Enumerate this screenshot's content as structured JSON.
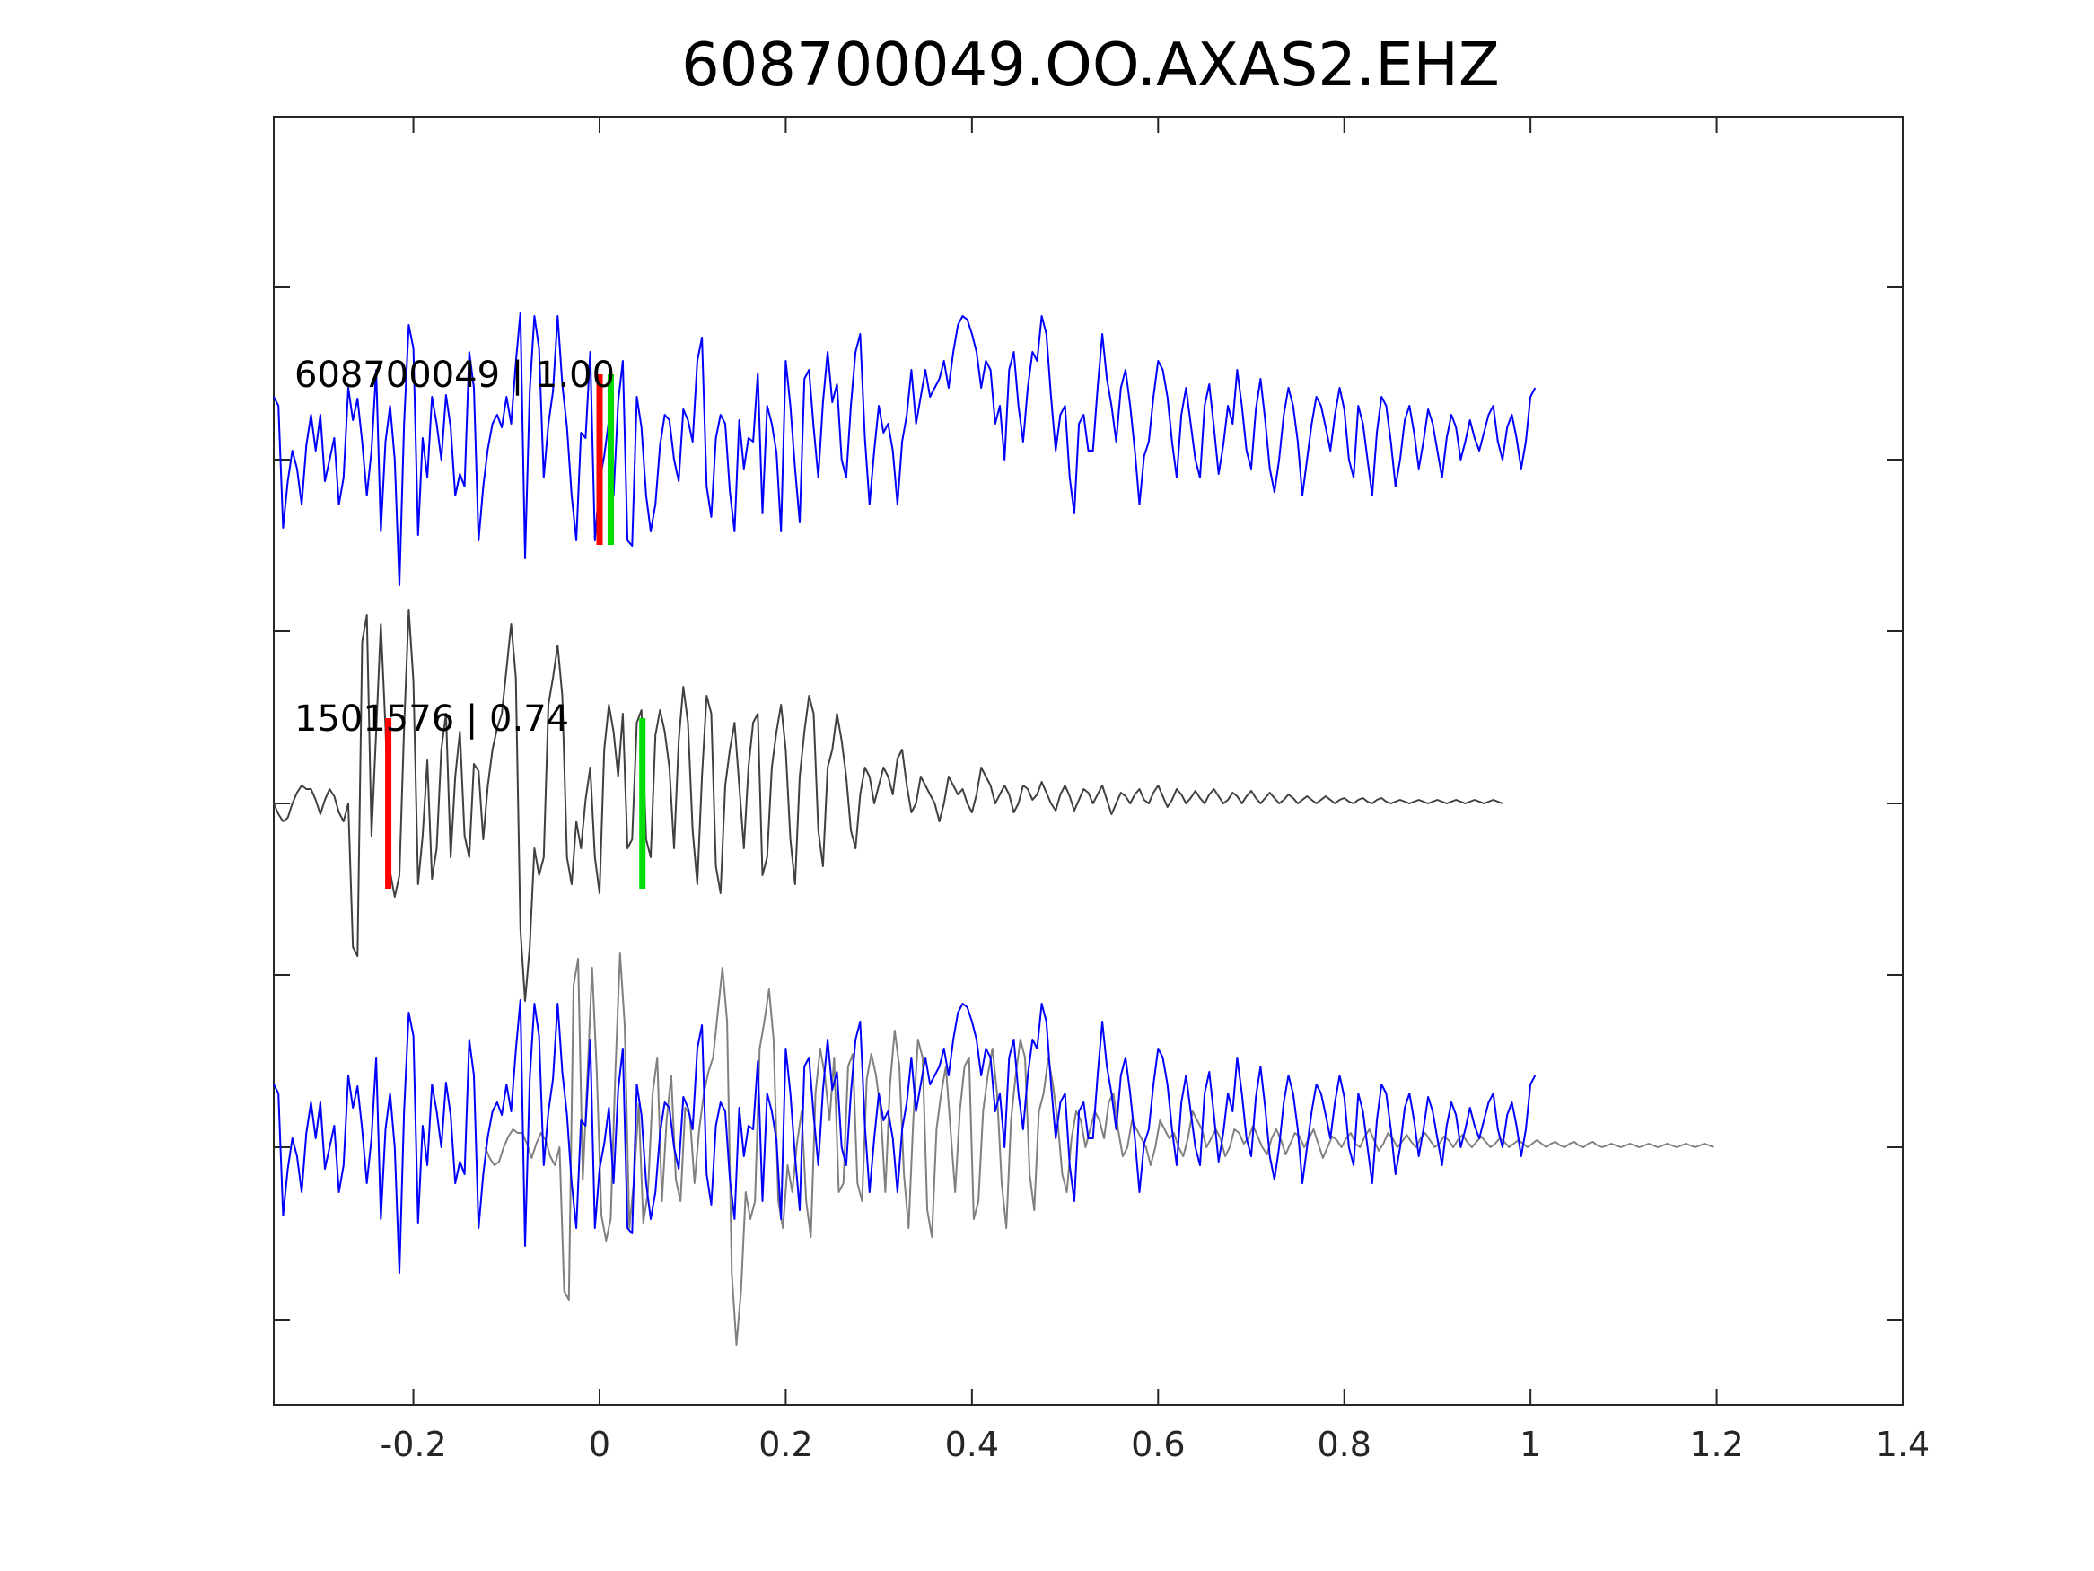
{
  "chart_data": {
    "type": "line",
    "title": "608700049.OO.AXAS2.EHZ",
    "xlabel": "",
    "ylabel": "",
    "xlim": [
      -0.35,
      1.4
    ],
    "x_ticks": [
      -0.2,
      0,
      0.2,
      0.4,
      0.6,
      0.8,
      1,
      1.2,
      1.4
    ],
    "x_tick_labels": [
      "-0.2",
      "0",
      "0.2",
      "0.4",
      "0.6",
      "0.8",
      "1",
      "1.2",
      "1.4"
    ],
    "grid": false,
    "sample_interval": 0.005,
    "colors": {
      "template": "#0000ff",
      "match": "#404040",
      "match_overlay": "#808080",
      "p_pick": "#ff0000",
      "s_pick": "#00dd00"
    },
    "traces": [
      {
        "label": "608700049 | 1.00",
        "x_start": -0.35,
        "picks": {
          "p": 0.0,
          "s": 0.012
        },
        "values": [
          0.35,
          0.3,
          -0.38,
          -0.12,
          0.05,
          -0.05,
          -0.25,
          0.08,
          0.25,
          0.05,
          0.25,
          -0.12,
          0.0,
          0.12,
          -0.25,
          -0.1,
          0.4,
          0.22,
          0.34,
          0.1,
          -0.2,
          0.05,
          0.5,
          -0.4,
          0.1,
          0.3,
          0.0,
          -0.7,
          0.2,
          0.75,
          0.62,
          -0.42,
          0.12,
          -0.1,
          0.35,
          0.2,
          0.0,
          0.36,
          0.18,
          -0.2,
          -0.08,
          -0.15,
          0.6,
          0.4,
          -0.45,
          -0.15,
          0.06,
          0.2,
          0.25,
          0.18,
          0.35,
          0.2,
          0.54,
          0.82,
          -0.55,
          0.38,
          0.8,
          0.62,
          -0.1,
          0.2,
          0.38,
          0.8,
          0.42,
          0.18,
          -0.2,
          -0.45,
          0.15,
          0.12,
          0.6,
          -0.45,
          -0.12,
          0.02,
          0.22,
          -0.2,
          0.32,
          0.55,
          -0.45,
          -0.48,
          0.35,
          0.18,
          -0.2,
          -0.4,
          -0.25,
          0.08,
          0.25,
          0.22,
          0.0,
          -0.12,
          0.28,
          0.22,
          0.1,
          0.55,
          0.68,
          -0.15,
          -0.32,
          0.12,
          0.25,
          0.2,
          -0.18,
          -0.4,
          0.22,
          -0.05,
          0.12,
          0.1,
          0.48,
          -0.3,
          0.3,
          0.2,
          0.04,
          -0.4,
          0.55,
          0.3,
          -0.05,
          -0.35,
          0.45,
          0.5,
          0.18,
          -0.1,
          0.32,
          0.6,
          0.32,
          0.42,
          0.0,
          -0.1,
          0.3,
          0.6,
          0.7,
          0.12,
          -0.25,
          0.05,
          0.3,
          0.15,
          0.2,
          0.05,
          -0.25,
          0.1,
          0.25,
          0.5,
          0.2,
          0.35,
          0.5,
          0.35,
          0.4,
          0.45,
          0.55,
          0.4,
          0.6,
          0.75,
          0.8,
          0.78,
          0.7,
          0.6,
          0.4,
          0.55,
          0.5,
          0.2,
          0.3,
          0.0,
          0.5,
          0.6,
          0.3,
          0.1,
          0.4,
          0.6,
          0.55,
          0.8,
          0.7,
          0.35,
          0.05,
          0.25,
          0.3,
          -0.1,
          -0.3,
          0.2,
          0.25,
          0.05,
          0.05,
          0.4,
          0.7,
          0.45,
          0.3,
          0.1,
          0.4,
          0.5,
          0.3,
          0.05,
          -0.25,
          0.02,
          0.1,
          0.35,
          0.55,
          0.5,
          0.35,
          0.1,
          -0.1,
          0.25,
          0.4,
          0.2,
          0.0,
          -0.1,
          0.3,
          0.42,
          0.18,
          -0.08,
          0.08,
          0.3,
          0.2,
          0.5,
          0.3,
          0.05,
          -0.05,
          0.28,
          0.45,
          0.22,
          -0.05,
          -0.18,
          0.0,
          0.25,
          0.4,
          0.3,
          0.1,
          -0.2,
          0.0,
          0.2,
          0.35,
          0.3,
          0.18,
          0.05,
          0.25,
          0.4,
          0.28,
          0.0,
          -0.1,
          0.3,
          0.2,
          0.0,
          -0.2,
          0.15,
          0.35,
          0.3,
          0.1,
          -0.15,
          0.0,
          0.22,
          0.3,
          0.15,
          -0.05,
          0.1,
          0.28,
          0.2,
          0.05,
          -0.1,
          0.12,
          0.25,
          0.18,
          0.0,
          0.1,
          0.22,
          0.12,
          0.05,
          0.15,
          0.25,
          0.3,
          0.1,
          0.0,
          0.18,
          0.25,
          0.12,
          -0.05,
          0.1,
          0.35,
          0.4
        ]
      },
      {
        "label": "1501576 | 0.74",
        "x_start": -0.35,
        "picks": {
          "p": -0.227,
          "s": 0.046
        },
        "values": [
          0.0,
          -0.06,
          -0.1,
          -0.08,
          0.0,
          0.06,
          0.1,
          0.08,
          0.08,
          0.02,
          -0.06,
          0.02,
          0.08,
          0.04,
          -0.05,
          -0.1,
          0.0,
          -0.8,
          -0.85,
          0.9,
          1.05,
          -0.18,
          0.4,
          1.0,
          0.42,
          -0.38,
          -0.52,
          -0.4,
          0.42,
          1.08,
          0.68,
          -0.45,
          -0.18,
          0.24,
          -0.42,
          -0.25,
          0.3,
          0.5,
          -0.3,
          0.15,
          0.4,
          -0.18,
          -0.3,
          0.22,
          0.18,
          -0.2,
          0.1,
          0.3,
          0.42,
          0.5,
          0.75,
          1.0,
          0.7,
          -0.7,
          -1.1,
          -0.8,
          -0.25,
          -0.4,
          -0.3,
          0.55,
          0.7,
          0.88,
          0.6,
          -0.3,
          -0.45,
          -0.1,
          -0.25,
          0.02,
          0.2,
          -0.3,
          -0.5,
          0.3,
          0.55,
          0.4,
          0.15,
          0.5,
          -0.25,
          -0.2,
          0.45,
          0.52,
          -0.2,
          -0.3,
          0.38,
          0.52,
          0.4,
          0.2,
          -0.25,
          0.35,
          0.65,
          0.45,
          -0.15,
          -0.45,
          0.15,
          0.6,
          0.5,
          -0.35,
          -0.5,
          0.1,
          0.3,
          0.45,
          0.1,
          -0.25,
          0.2,
          0.45,
          0.5,
          -0.4,
          -0.3,
          0.2,
          0.4,
          0.55,
          0.3,
          -0.2,
          -0.45,
          0.15,
          0.4,
          0.6,
          0.5,
          -0.15,
          -0.35,
          0.2,
          0.3,
          0.5,
          0.35,
          0.15,
          -0.15,
          -0.25,
          0.05,
          0.2,
          0.15,
          0.0,
          0.1,
          0.2,
          0.15,
          0.05,
          0.25,
          0.3,
          0.1,
          -0.05,
          0.0,
          0.15,
          0.1,
          0.05,
          0.0,
          -0.1,
          0.0,
          0.15,
          0.1,
          0.05,
          0.08,
          0.0,
          -0.05,
          0.05,
          0.2,
          0.15,
          0.1,
          0.0,
          0.05,
          0.1,
          0.05,
          -0.05,
          0.0,
          0.1,
          0.08,
          0.02,
          0.05,
          0.12,
          0.06,
          0.0,
          -0.04,
          0.05,
          0.1,
          0.04,
          -0.04,
          0.02,
          0.08,
          0.06,
          0.0,
          0.05,
          0.1,
          0.02,
          -0.06,
          0.0,
          0.06,
          0.04,
          0.0,
          0.05,
          0.08,
          0.02,
          0.0,
          0.06,
          0.1,
          0.04,
          -0.02,
          0.02,
          0.08,
          0.05,
          0.0,
          0.03,
          0.07,
          0.03,
          0.0,
          0.05,
          0.08,
          0.04,
          0.0,
          0.02,
          0.06,
          0.04,
          0.0,
          0.04,
          0.07,
          0.03,
          0.0,
          0.03,
          0.06,
          0.03,
          0.0,
          0.02,
          0.05,
          0.03,
          0.0,
          0.02,
          0.04,
          0.02,
          0.0,
          0.02,
          0.04,
          0.02,
          0.0,
          0.02,
          0.03,
          0.01,
          0.0,
          0.02,
          0.03,
          0.01,
          0.0,
          0.02,
          0.03,
          0.01,
          0.0,
          0.01,
          0.02,
          0.01,
          0.0,
          0.01,
          0.02,
          0.01,
          0.0,
          0.01,
          0.02,
          0.01,
          0.0,
          0.01,
          0.02,
          0.01,
          0.0,
          0.01,
          0.02,
          0.01,
          0.0,
          0.01,
          0.02,
          0.01,
          0.0
        ]
      }
    ]
  }
}
